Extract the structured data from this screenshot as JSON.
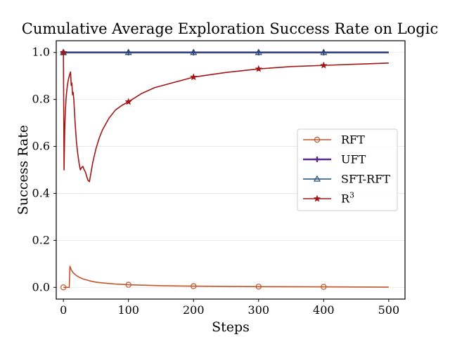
{
  "chart_data": {
    "type": "line",
    "title": "Cumulative Average Exploration Success Rate on Logic",
    "xlabel": "Steps",
    "ylabel": "Success Rate",
    "xlim": [
      -11,
      525
    ],
    "ylim": [
      -0.05,
      1.05
    ],
    "xticks": [
      0,
      100,
      200,
      300,
      400,
      500
    ],
    "yticks": [
      0.0,
      0.2,
      0.4,
      0.6,
      0.8,
      1.0
    ],
    "xtick_labels": [
      "0",
      "100",
      "200",
      "300",
      "400",
      "500"
    ],
    "ytick_labels": [
      "0.0",
      "0.2",
      "0.4",
      "0.6",
      "0.8",
      "1.0"
    ],
    "grid": true,
    "legend_position": "center-right",
    "series": [
      {
        "name": "RFT",
        "color": "#c0552a",
        "marker": "circle",
        "markers_x": [
          0,
          100,
          200,
          300,
          400
        ],
        "x": [
          0,
          5,
          9,
          10,
          12,
          15,
          20,
          25,
          30,
          40,
          50,
          60,
          80,
          100,
          150,
          200,
          300,
          400,
          500
        ],
        "y": [
          0.0,
          0.0,
          0.0,
          0.09,
          0.075,
          0.062,
          0.05,
          0.042,
          0.036,
          0.028,
          0.022,
          0.019,
          0.014,
          0.011,
          0.007,
          0.005,
          0.003,
          0.002,
          0.001
        ]
      },
      {
        "name": "UFT",
        "color": "#5b2a86",
        "marker": "plus",
        "markers_x": [
          0,
          100,
          200,
          300,
          400
        ],
        "x": [
          0,
          100,
          200,
          300,
          400,
          500
        ],
        "y": [
          1.0,
          1.0,
          1.0,
          1.0,
          1.0,
          1.0
        ]
      },
      {
        "name": "SFT-RFT",
        "color": "#1f4e79",
        "marker": "triangle",
        "markers_x": [
          0,
          100,
          200,
          300,
          400
        ],
        "x": [
          0,
          100,
          200,
          300,
          400,
          500
        ],
        "y": [
          1.0,
          1.0,
          1.0,
          1.0,
          1.0,
          1.0
        ]
      },
      {
        "name": "R",
        "name_sup": "3",
        "color": "#a31515",
        "marker": "star",
        "markers_x": [
          0,
          100,
          200,
          300,
          400
        ],
        "x": [
          0,
          1,
          2,
          3,
          4,
          5,
          6,
          7,
          8,
          9,
          10,
          11,
          12,
          13,
          14,
          15,
          16,
          17,
          18,
          19,
          20,
          22,
          24,
          26,
          28,
          30,
          32,
          34,
          36,
          38,
          40,
          45,
          50,
          55,
          60,
          70,
          80,
          90,
          100,
          120,
          140,
          160,
          180,
          200,
          250,
          300,
          350,
          400,
          450,
          500
        ],
        "y": [
          1.0,
          0.5,
          0.67,
          0.75,
          0.8,
          0.833,
          0.857,
          0.875,
          0.889,
          0.9,
          0.91,
          0.917,
          0.86,
          0.87,
          0.82,
          0.83,
          0.8,
          0.75,
          0.7,
          0.66,
          0.62,
          0.57,
          0.53,
          0.5,
          0.51,
          0.515,
          0.5,
          0.49,
          0.47,
          0.455,
          0.45,
          0.53,
          0.59,
          0.635,
          0.67,
          0.72,
          0.755,
          0.775,
          0.79,
          0.825,
          0.85,
          0.865,
          0.88,
          0.895,
          0.915,
          0.93,
          0.94,
          0.945,
          0.95,
          0.955
        ]
      }
    ]
  }
}
